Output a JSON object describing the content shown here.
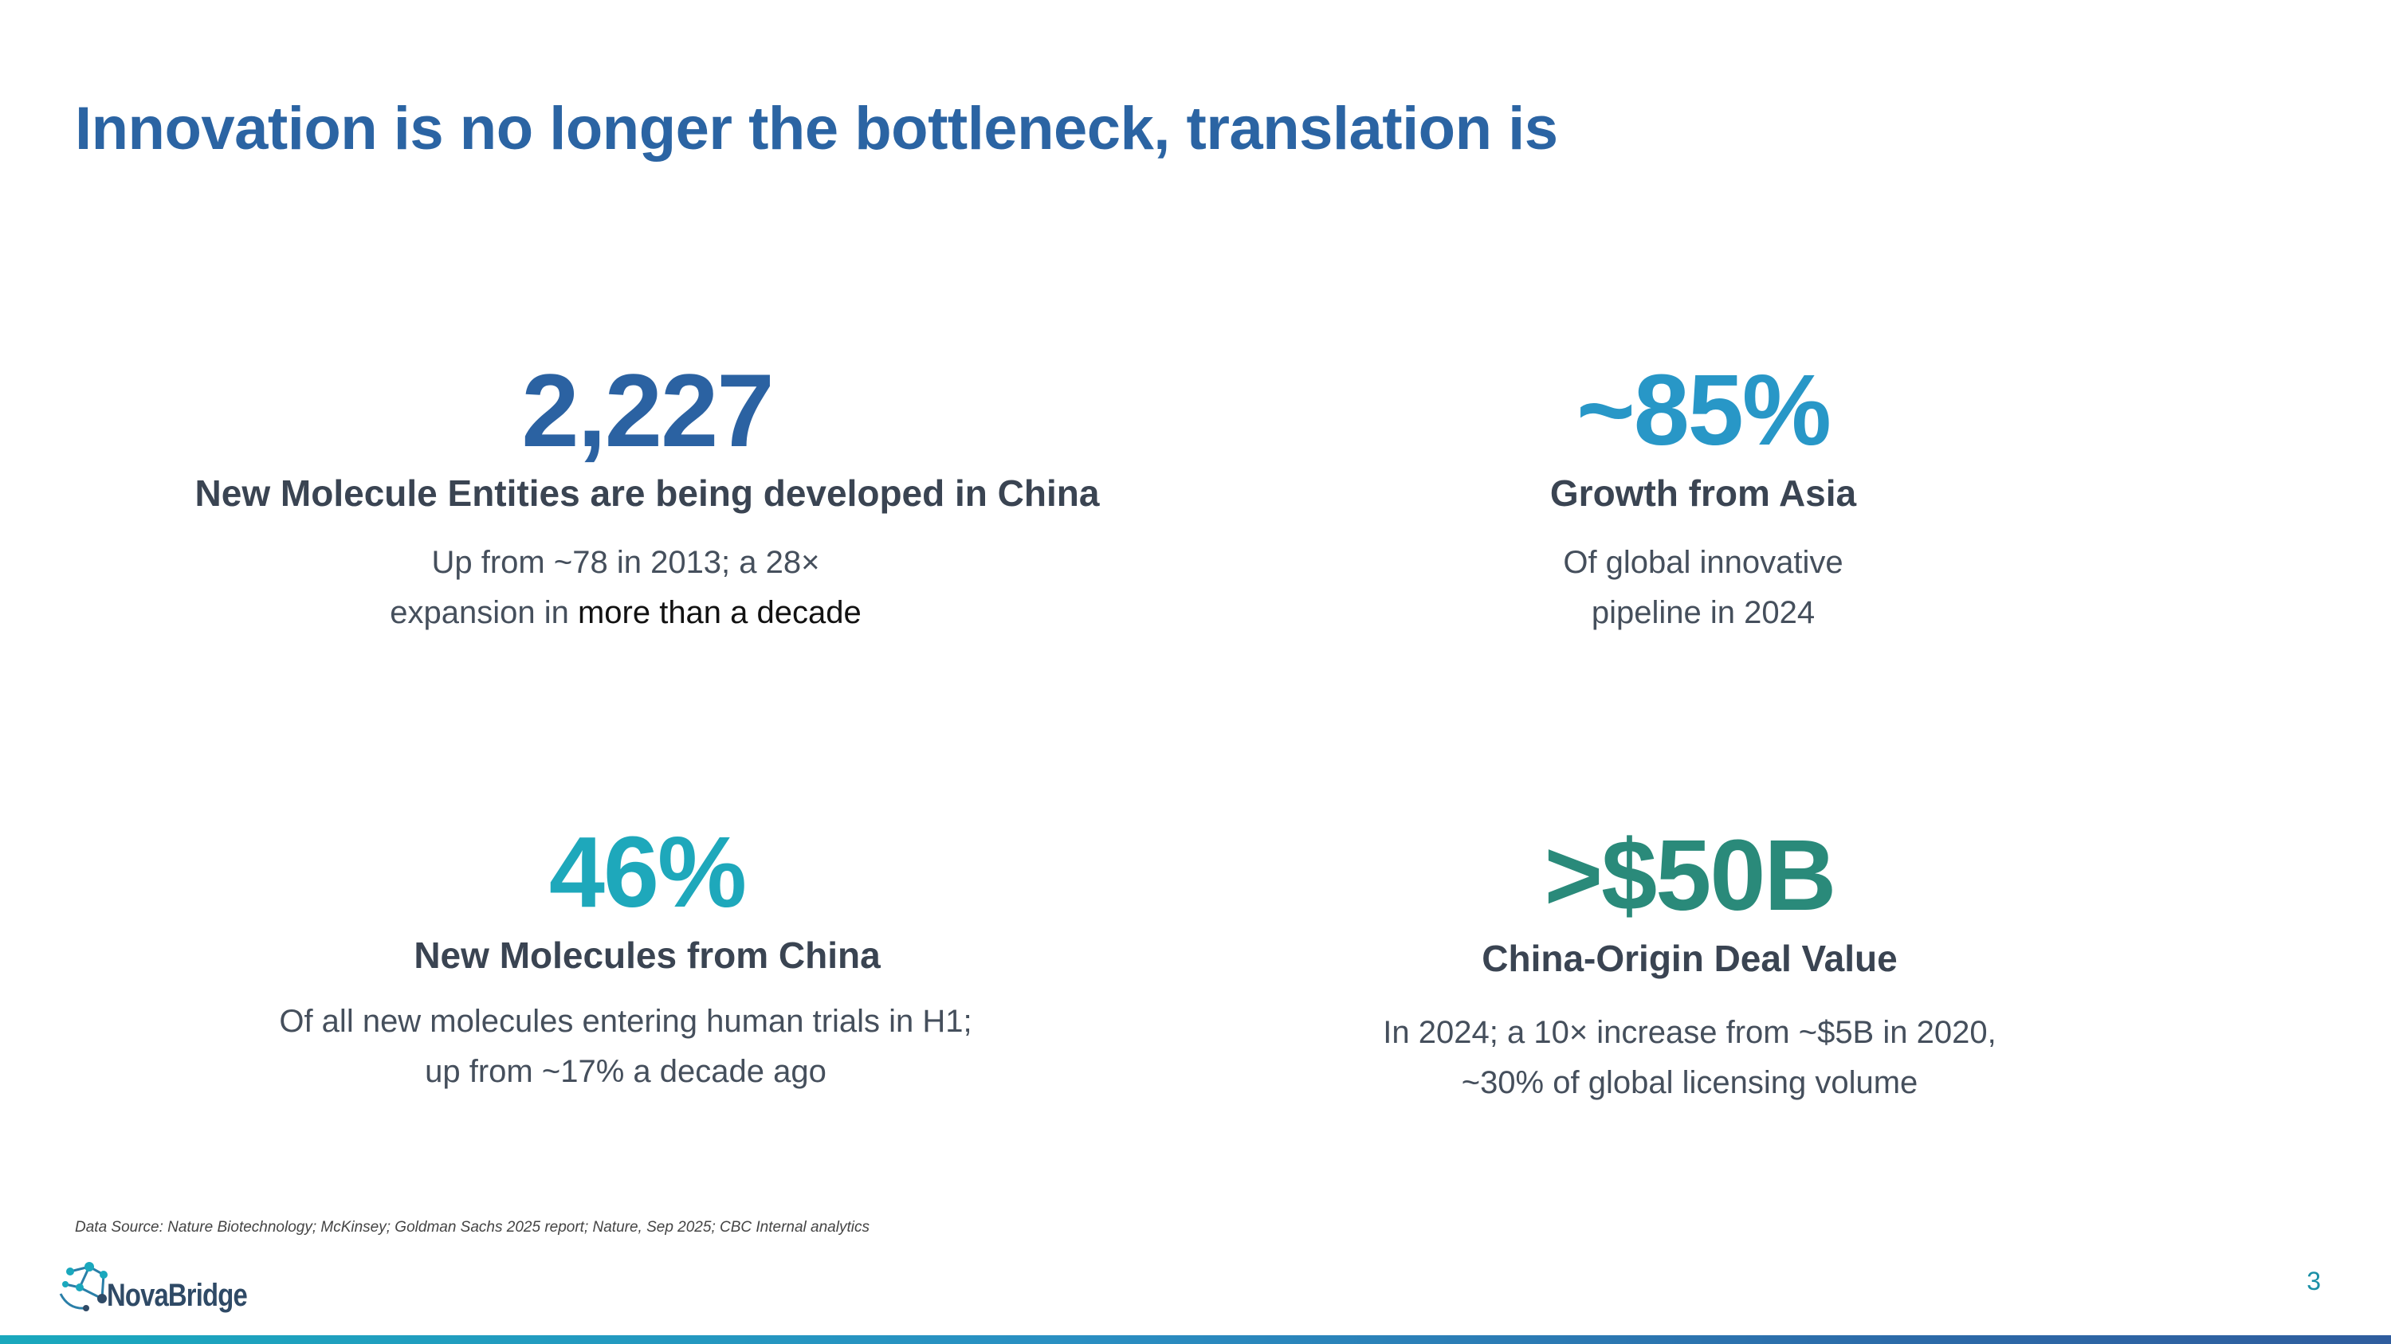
{
  "slide": {
    "title": "Innovation is no longer the bottleneck, translation is",
    "page_number": "3",
    "source_note": "Data Source: Nature Biotechnology; McKinsey; Goldman Sachs 2025 report; Nature, Sep 2025; CBC Internal analytics",
    "logo_text": "NovaBridge"
  },
  "stats": [
    {
      "value": "2,227",
      "heading": "New Molecule Entities are being developed in China",
      "desc_line1": "Up from ~78 in 2013; a 28×",
      "desc_line2_a": "expansion in ",
      "desc_line2_b": "more than a decade",
      "color": "#2b62a2"
    },
    {
      "value": "~85%",
      "heading": "Growth from Asia",
      "desc_line1": "Of global innovative",
      "desc_line2": "pipeline in 2024",
      "color": "#2897c7"
    },
    {
      "value": "46%",
      "heading": "New Molecules from China",
      "desc_line1": "Of all new molecules entering human trials in H1;",
      "desc_line2": "up from ~17% a decade ago",
      "color": "#1ea8bb"
    },
    {
      "value": ">$50B",
      "heading": "China-Origin Deal Value",
      "desc_line1": "In 2024; a 10× increase from ~$5B in 2020,",
      "desc_line2": "~30% of global licensing volume",
      "color": "#2a8a7a"
    }
  ],
  "colors": {
    "title": "#2b64a3",
    "heading": "#3a4452",
    "body": "#454f5c",
    "accent": "#1a8fa6"
  }
}
